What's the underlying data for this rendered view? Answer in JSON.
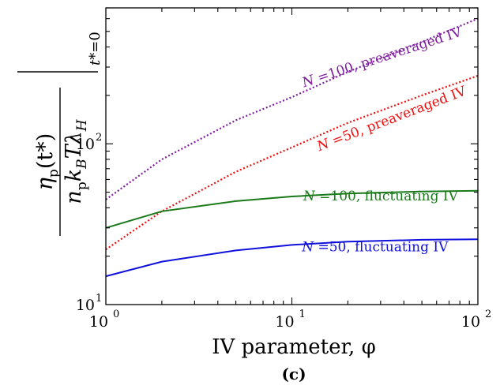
{
  "chart_data": {
    "type": "line",
    "xscale": "log",
    "yscale": "log",
    "xlim": [
      1,
      100
    ],
    "ylim": [
      10,
      700
    ],
    "xlabel": "IV parameter, φ",
    "ylabel": "ηp(t*) / (np kB T λH) |t*=0",
    "ylabel_parts": {
      "num_main": "η",
      "num_sub": "p",
      "num_rest": "(t*)",
      "den_n": "n",
      "den_n_sub": "p",
      "den_k": "k",
      "den_k_sub": "B",
      "den_T": "T",
      "den_lambda": "λ",
      "den_lambda_sub": "H",
      "eval_t": "t*",
      "eval_rest": "=0"
    },
    "xticks": [
      {
        "base": "10",
        "exp": "0",
        "value": 1
      },
      {
        "base": "10",
        "exp": "1",
        "value": 10
      },
      {
        "base": "10",
        "exp": "2",
        "value": 100
      }
    ],
    "yticks": [
      {
        "base": "10",
        "exp": "1",
        "value": 10
      },
      {
        "base": "10",
        "exp": "2",
        "value": 100
      }
    ],
    "subcaption": "(c)",
    "series": [
      {
        "label": "N =100, preaveraged IV",
        "label_parts": {
          "italic": "N",
          "rest": " =100, preaveraged IV"
        },
        "color": "#7f1f9f",
        "style": "dotted",
        "x": [
          1,
          2,
          5,
          10,
          20,
          50,
          100
        ],
        "y": [
          45,
          80,
          140,
          195,
          280,
          430,
          600
        ]
      },
      {
        "label": "N =50, preaveraged IV",
        "label_parts": {
          "italic": "N",
          "rest": " =50, preaveraged IV"
        },
        "color": "#ee1111",
        "style": "dotted",
        "x": [
          1,
          2,
          5,
          10,
          20,
          50,
          100
        ],
        "y": [
          22,
          38,
          67,
          95,
          135,
          200,
          265
        ]
      },
      {
        "label": "N =100, fluctuating IV",
        "label_parts": {
          "italic": "N",
          "rest": " =100, fluctuating IV"
        },
        "color": "#1a7a1a",
        "style": "solid",
        "x": [
          1,
          2,
          5,
          10,
          20,
          50,
          100
        ],
        "y": [
          30,
          38,
          44,
          47,
          49,
          50.5,
          51
        ]
      },
      {
        "label": "N =50, fluctuating IV",
        "label_parts": {
          "italic": "N",
          "rest": " =50, fluctuating IV"
        },
        "color": "#1111dd",
        "style": "solid",
        "x": [
          1,
          2,
          5,
          10,
          20,
          50,
          100
        ],
        "y": [
          15,
          18.5,
          21.7,
          23.5,
          24.6,
          25.3,
          25.5
        ]
      }
    ],
    "grid": false,
    "legend": "inline labels"
  }
}
